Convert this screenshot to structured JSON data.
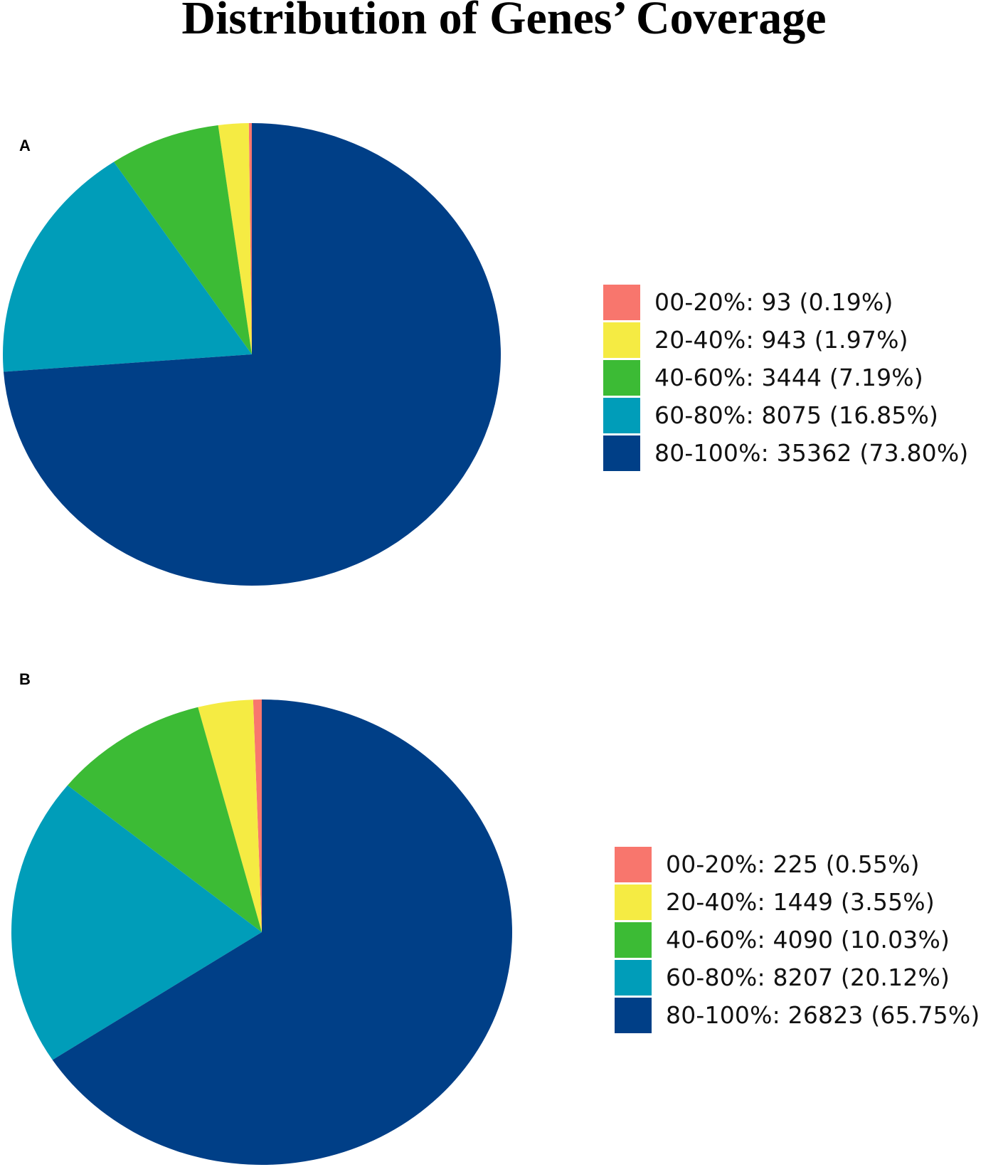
{
  "title": "Distribution of Genes’ Coverage",
  "panels": [
    {
      "letter": "A"
    },
    {
      "letter": "B"
    }
  ],
  "chart_data": [
    {
      "type": "pie",
      "panel": "A",
      "categories": [
        "00-20%",
        "20-40%",
        "40-60%",
        "60-80%",
        "80-100%"
      ],
      "values": [
        93,
        943,
        3444,
        8075,
        35362
      ],
      "percents": [
        0.19,
        1.97,
        7.19,
        16.85,
        73.8
      ],
      "colors": [
        "#F8766D",
        "#F5EB43",
        "#3CBB35",
        "#009DB9",
        "#003F87"
      ],
      "legend_labels": [
        "00-20%: 93 (0.19%)",
        "20-40%: 943 (1.97%)",
        "40-60%: 3444 (7.19%)",
        "60-80%: 8075 (16.85%)",
        "80-100%: 35362 (73.80%)"
      ],
      "legend_position": "right",
      "start": "top",
      "direction": "counterclockwise"
    },
    {
      "type": "pie",
      "panel": "B",
      "categories": [
        "00-20%",
        "20-40%",
        "40-60%",
        "60-80%",
        "80-100%"
      ],
      "values": [
        225,
        1449,
        4090,
        8207,
        26823
      ],
      "percents": [
        0.55,
        3.55,
        10.03,
        20.12,
        65.75
      ],
      "colors": [
        "#F8766D",
        "#F5EB43",
        "#3CBB35",
        "#009DB9",
        "#003F87"
      ],
      "legend_labels": [
        "00-20%: 225 (0.55%)",
        "20-40%: 1449 (3.55%)",
        "40-60%: 4090 (10.03%)",
        "60-80%: 8207 (20.12%)",
        "80-100%: 26823 (65.75%)"
      ],
      "legend_position": "right",
      "start": "top",
      "direction": "counterclockwise"
    }
  ]
}
